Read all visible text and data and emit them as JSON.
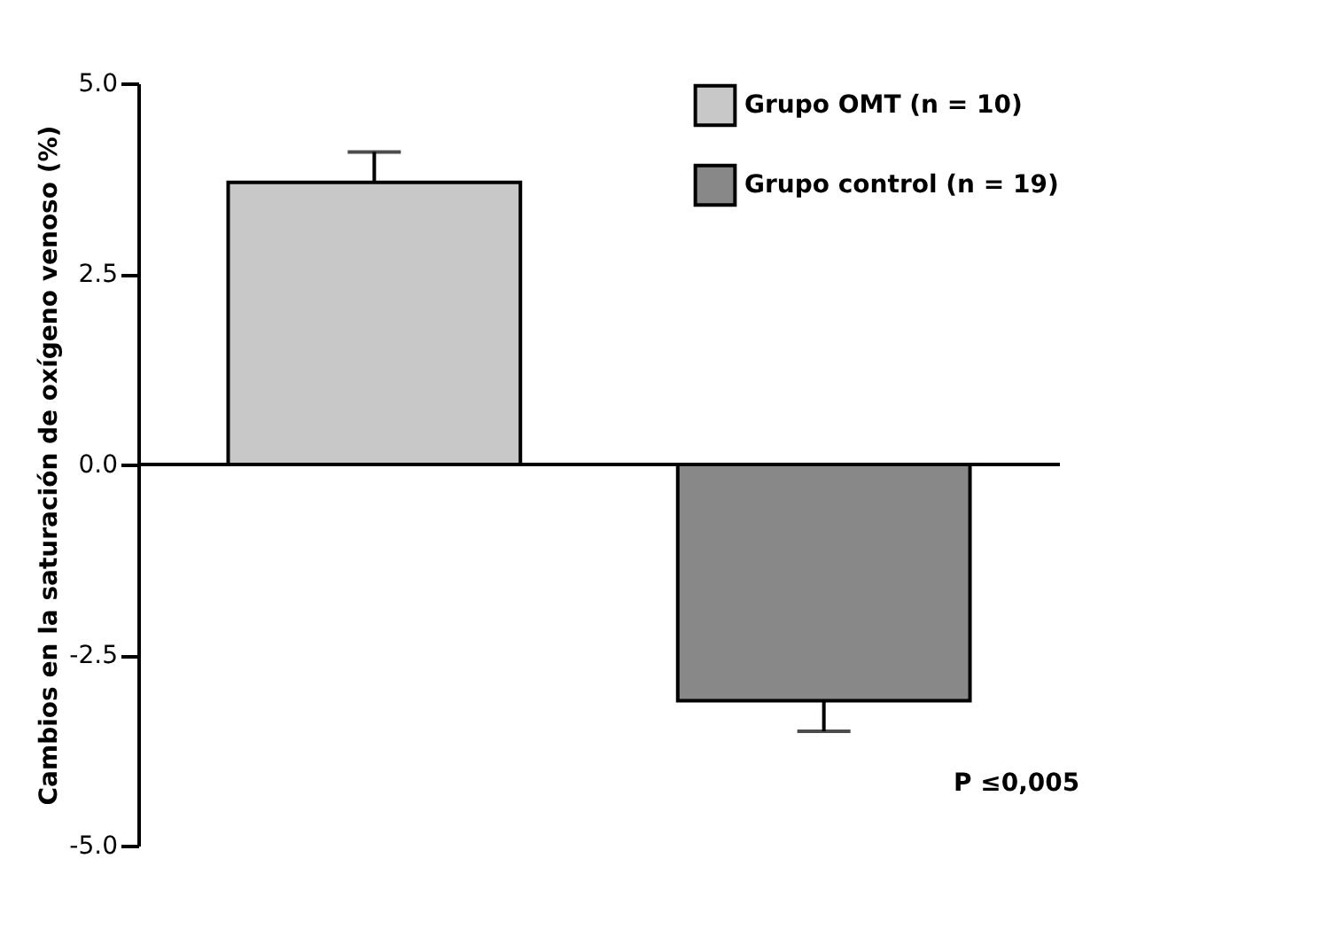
{
  "chart_data": {
    "type": "bar",
    "ylabel": "Cambios en la saturación de oxígeno venoso (%)",
    "categories": [
      null,
      null
    ],
    "series": [
      {
        "name": "Grupo OMT (n = 10)",
        "color": "#c8c8c8",
        "values": [
          3.7,
          null
        ],
        "errors": [
          0.4,
          null
        ]
      },
      {
        "name": "Grupo control (n = 19)",
        "color": "#888888",
        "values": [
          null,
          -3.1
        ],
        "errors": [
          null,
          0.4
        ]
      }
    ],
    "ylim": [
      -5,
      5
    ],
    "yticks": [
      {
        "value": 5,
        "label": "5.0"
      },
      {
        "value": 2.5,
        "label": "2.5"
      },
      {
        "value": 0,
        "label": "0.0"
      },
      {
        "value": -2.5,
        "label": "-2.5"
      },
      {
        "value": -5,
        "label": "-5.0"
      }
    ],
    "ref_lines": [
      {
        "axis": "y",
        "value": 0
      }
    ],
    "annotations": [
      "P ≤0,005"
    ],
    "legend": "top right",
    "grid": false
  }
}
